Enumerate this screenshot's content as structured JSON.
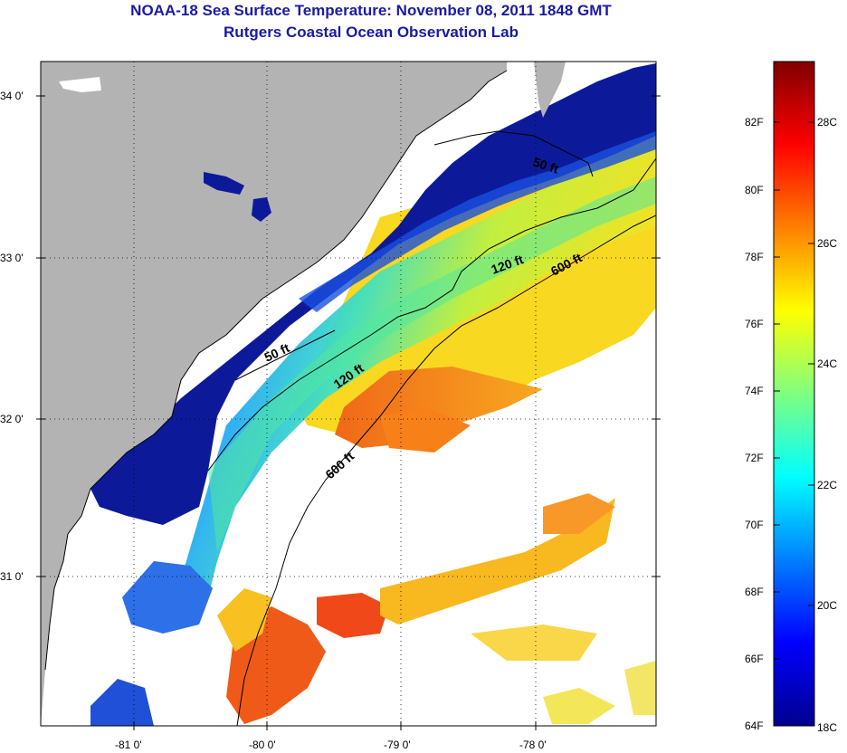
{
  "header": {
    "title_line1": "NOAA-18 Sea Surface Temperature:  November 08, 2011 1848 GMT",
    "title_line2": "Rutgers Coastal Ocean Observation Lab"
  },
  "map": {
    "lat_ticks": [
      "34 0'",
      "33 0'",
      "32 0'",
      "31 0'"
    ],
    "lon_ticks": [
      "-81 0'",
      "-80 0'",
      "-79 0'",
      "-78 0'"
    ],
    "contour_labels": [
      "50 ft",
      "120 ft",
      "600 ft",
      "50 ft",
      "120 ft",
      "600 ft"
    ],
    "colors": {
      "land": "#b3b3b3",
      "cloud": "#ffffff",
      "nearshore": "#0a1a8c",
      "gulf_stream": "#f07018"
    }
  },
  "colorbar": {
    "fahrenheit_labels": [
      "82F",
      "80F",
      "78F",
      "76F",
      "74F",
      "72F",
      "70F",
      "68F",
      "66F",
      "64F"
    ],
    "celsius_labels": [
      "28C",
      "26C",
      "24C",
      "22C",
      "20C",
      "18C"
    ],
    "colormap": "jet"
  }
}
